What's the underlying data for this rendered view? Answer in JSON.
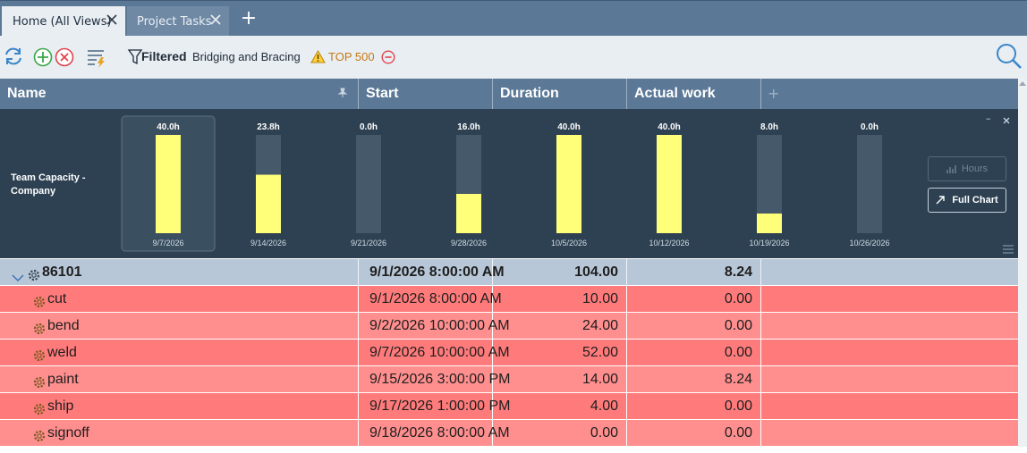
{
  "tabs": [
    {
      "label": "Home (All Views)"
    },
    {
      "label": "Project Tasks"
    }
  ],
  "toolbar": {
    "filter_label": "Filtered",
    "filter_name": "Bridging and Bracing",
    "top_label": "TOP 500"
  },
  "columns": [
    {
      "label": "Name"
    },
    {
      "label": "Start"
    },
    {
      "label": "Duration"
    },
    {
      "label": "Actual work"
    }
  ],
  "chart": {
    "title": "Team Capacity - Company",
    "buttons": {
      "hours": "Hours",
      "full_chart": "Full Chart"
    },
    "accent": "#ffff7a"
  },
  "chart_data": {
    "type": "bar",
    "categories": [
      "9/7/2026",
      "9/14/2026",
      "9/21/2026",
      "9/28/2026",
      "10/5/2026",
      "10/12/2026",
      "10/19/2026",
      "10/26/2026"
    ],
    "values": [
      40.0,
      23.8,
      0.0,
      16.0,
      40.0,
      40.0,
      8.0,
      0.0
    ],
    "labels": [
      "40.0h",
      "23.8h",
      "0.0h",
      "16.0h",
      "40.0h",
      "40.0h",
      "8.0h",
      "0.0h"
    ],
    "ylim": [
      0,
      40
    ],
    "selected_index": 0
  },
  "rows": [
    {
      "name": "86101",
      "start": "9/1/2026 8:00:00 AM",
      "duration": "104.00",
      "actual": "8.24",
      "kind": "parent"
    },
    {
      "name": "cut",
      "start": "9/1/2026 8:00:00 AM",
      "duration": "10.00",
      "actual": "0.00",
      "kind": "child"
    },
    {
      "name": "bend",
      "start": "9/2/2026 10:00:00 AM",
      "duration": "24.00",
      "actual": "0.00",
      "kind": "child"
    },
    {
      "name": "weld",
      "start": "9/7/2026 10:00:00 AM",
      "duration": "52.00",
      "actual": "0.00",
      "kind": "child"
    },
    {
      "name": "paint",
      "start": "9/15/2026 3:00:00 PM",
      "duration": "14.00",
      "actual": "8.24",
      "kind": "child"
    },
    {
      "name": "ship",
      "start": "9/17/2026 1:00:00 PM",
      "duration": "4.00",
      "actual": "0.00",
      "kind": "child"
    },
    {
      "name": "signoff",
      "start": "9/18/2026 8:00:00 AM",
      "duration": "0.00",
      "actual": "0.00",
      "kind": "child"
    }
  ]
}
